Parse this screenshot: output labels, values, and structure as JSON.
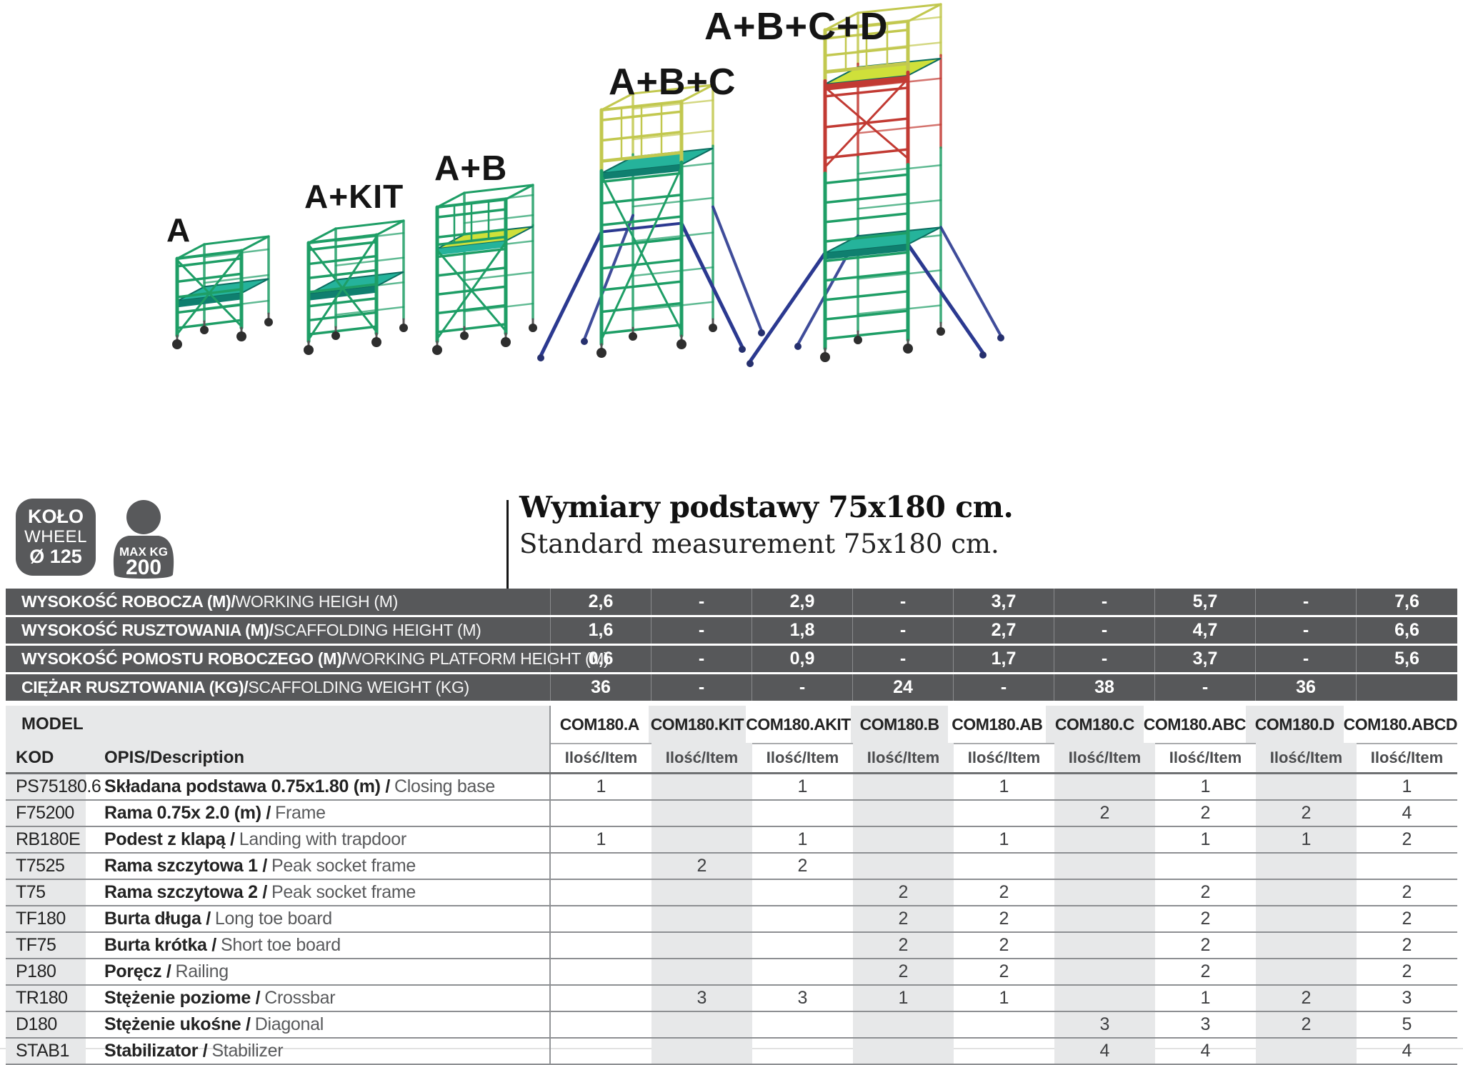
{
  "illustrations": {
    "configs": [
      {
        "label": "A"
      },
      {
        "label": "A+KIT"
      },
      {
        "label": "A+B"
      },
      {
        "label": "A+B+C"
      },
      {
        "label": "A+B+C+D"
      }
    ]
  },
  "badges": {
    "wheel": {
      "line1": "KOŁO",
      "line2": "WHEEL",
      "line3": "Ø 125"
    },
    "max_load": {
      "line1": "MAX KG",
      "line2": "200"
    }
  },
  "title": {
    "pl": "Wymiary podstawy 75x180 cm.",
    "en": "Standard measurement 75x180 cm."
  },
  "table": {
    "model_label": "MODEL",
    "kod_label": "KOD",
    "opis_label": "OPIS/Description",
    "qty_label": "Ilość/Item",
    "models": [
      "COM180.A",
      "COM180.KIT",
      "COM180.AKIT",
      "COM180.B",
      "COM180.AB",
      "COM180.C",
      "COM180.ABC",
      "COM180.D",
      "COM180.ABCD"
    ],
    "spec_rows": [
      {
        "label_pl": "WYSOKOŚĆ ROBOCZA (M)/",
        "label_en": "WORKING HEIGH (M)",
        "values": [
          "2,6",
          "-",
          "2,9",
          "-",
          "3,7",
          "-",
          "5,7",
          "-",
          "7,6"
        ]
      },
      {
        "label_pl": "WYSOKOŚĆ RUSZTOWANIA (M)/",
        "label_en": "SCAFFOLDING HEIGHT (M)",
        "values": [
          "1,6",
          "-",
          "1,8",
          "-",
          "2,7",
          "-",
          "4,7",
          "-",
          "6,6"
        ]
      },
      {
        "label_pl": "WYSOKOŚĆ POMOSTU ROBOCZEGO (M)/",
        "label_en": "WORKING PLATFORM HEIGHT (M)",
        "values": [
          "0,6",
          "-",
          "0,9",
          "-",
          "1,7",
          "-",
          "3,7",
          "-",
          "5,6"
        ]
      },
      {
        "label_pl": "CIĘŻAR RUSZTOWANIA (KG)/",
        "label_en": "SCAFFOLDING WEIGHT (KG)",
        "values": [
          "36",
          "-",
          "-",
          "24",
          "-",
          "38",
          "-",
          "36",
          ""
        ]
      }
    ],
    "item_rows": [
      {
        "kod": "PS75180.6",
        "opis_pl": "Składana podstawa 0.75x1.80 (m) /",
        "opis_en": "Closing base",
        "qty": [
          "1",
          "",
          "1",
          "",
          "1",
          "",
          "1",
          "",
          "1"
        ]
      },
      {
        "kod": "F75200",
        "opis_pl": "Rama 0.75x 2.0 (m) /",
        "opis_en": "Frame",
        "qty": [
          "",
          "",
          "",
          "",
          "",
          "2",
          "2",
          "2",
          "4"
        ]
      },
      {
        "kod": "RB180E",
        "opis_pl": "Podest z klapą /",
        "opis_en": "Landing with trapdoor",
        "qty": [
          "1",
          "",
          "1",
          "",
          "1",
          "",
          "1",
          "1",
          "2"
        ]
      },
      {
        "kod": "T7525",
        "opis_pl": "Rama szczytowa 1 /",
        "opis_en": "Peak socket frame",
        "qty": [
          "",
          "2",
          "2",
          "",
          "",
          "",
          "",
          "",
          ""
        ]
      },
      {
        "kod": "T75",
        "opis_pl": "Rama szczytowa 2 /",
        "opis_en": "Peak socket frame",
        "qty": [
          "",
          "",
          "",
          "2",
          "2",
          "",
          "2",
          "",
          "2"
        ]
      },
      {
        "kod": "TF180",
        "opis_pl": "Burta długa /",
        "opis_en": "Long toe board",
        "qty": [
          "",
          "",
          "",
          "2",
          "2",
          "",
          "2",
          "",
          "2"
        ]
      },
      {
        "kod": "TF75",
        "opis_pl": "Burta krótka /",
        "opis_en": "Short toe board",
        "qty": [
          "",
          "",
          "",
          "2",
          "2",
          "",
          "2",
          "",
          "2"
        ]
      },
      {
        "kod": "P180",
        "opis_pl": "Poręcz /",
        "opis_en": "Railing",
        "qty": [
          "",
          "",
          "",
          "2",
          "2",
          "",
          "2",
          "",
          "2"
        ]
      },
      {
        "kod": "TR180",
        "opis_pl": "Stężenie poziome /",
        "opis_en": "Crossbar",
        "qty": [
          "",
          "3",
          "3",
          "1",
          "1",
          "",
          "1",
          "2",
          "3"
        ]
      },
      {
        "kod": "D180",
        "opis_pl": "Stężenie ukośne /",
        "opis_en": "Diagonal",
        "qty": [
          "",
          "",
          "",
          "",
          "",
          "3",
          "3",
          "2",
          "5"
        ]
      },
      {
        "kod": "STAB1",
        "opis_pl": "Stabilizator /",
        "opis_en": "Stabilizer",
        "qty": [
          "",
          "",
          "",
          "",
          "",
          "4",
          "4",
          "",
          "4"
        ]
      }
    ]
  },
  "palette": {
    "green": "#1e9e66",
    "teal": "#25b39b",
    "yellow": "#c2c84f",
    "deck_yellow": "#cfe03a",
    "red": "#c23a33",
    "blue": "#2b3990",
    "dark_gray": "#57585a",
    "light_gray": "#e7e8e9",
    "text_dark": "#231f20"
  }
}
